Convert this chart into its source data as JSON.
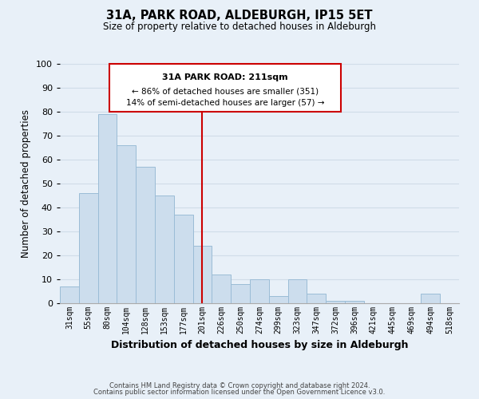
{
  "title": "31A, PARK ROAD, ALDEBURGH, IP15 5ET",
  "subtitle": "Size of property relative to detached houses in Aldeburgh",
  "xlabel": "Distribution of detached houses by size in Aldeburgh",
  "ylabel": "Number of detached properties",
  "footer_line1": "Contains HM Land Registry data © Crown copyright and database right 2024.",
  "footer_line2": "Contains public sector information licensed under the Open Government Licence v3.0.",
  "bar_labels": [
    "31sqm",
    "55sqm",
    "80sqm",
    "104sqm",
    "128sqm",
    "153sqm",
    "177sqm",
    "201sqm",
    "226sqm",
    "250sqm",
    "274sqm",
    "299sqm",
    "323sqm",
    "347sqm",
    "372sqm",
    "396sqm",
    "421sqm",
    "445sqm",
    "469sqm",
    "494sqm",
    "518sqm"
  ],
  "bar_values": [
    7,
    46,
    79,
    66,
    57,
    45,
    37,
    24,
    12,
    8,
    10,
    3,
    10,
    4,
    1,
    1,
    0,
    0,
    0,
    4,
    0
  ],
  "bar_color": "#ccdded",
  "bar_edge_color": "#9bbcd6",
  "vline_index": 7,
  "vline_color": "#cc0000",
  "ylim": [
    0,
    100
  ],
  "yticks": [
    0,
    10,
    20,
    30,
    40,
    50,
    60,
    70,
    80,
    90,
    100
  ],
  "annotation_title": "31A PARK ROAD: 211sqm",
  "annotation_line1": "← 86% of detached houses are smaller (351)",
  "annotation_line2": "14% of semi-detached houses are larger (57) →",
  "annotation_box_color": "#ffffff",
  "annotation_box_edge": "#cc0000",
  "grid_color": "#d0dce8",
  "background_color": "#e8f0f8"
}
